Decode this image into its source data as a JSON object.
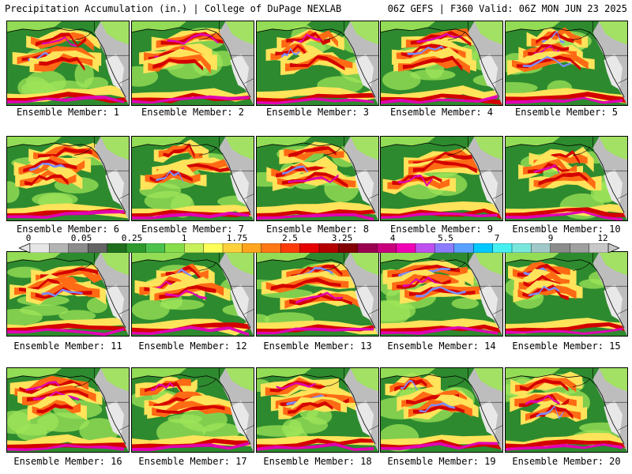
{
  "header": {
    "title": "Precipitation Accumulation (in.) | College of DuPage NEXLAB",
    "run_info": "06Z GEFS | F360 Valid: 06Z MON JUN 23 2025"
  },
  "members": [
    "Ensemble Member: 1",
    "Ensemble Member: 2",
    "Ensemble Member: 3",
    "Ensemble Member: 4",
    "Ensemble Member: 5",
    "Ensemble Member: 6",
    "Ensemble Member: 7",
    "Ensemble Member: 8",
    "Ensemble Member: 9",
    "Ensemble Member: 10",
    "Ensemble Member: 11",
    "Ensemble Member: 12",
    "Ensemble Member: 13",
    "Ensemble Member: 14",
    "Ensemble Member: 15",
    "Ensemble Member: 16",
    "Ensemble Member: 17",
    "Ensemble Member: 18",
    "Ensemble Member: 19",
    "Ensemble Member: 20"
  ],
  "colorbar": {
    "labels": [
      "0",
      "0.05",
      "0.25",
      "1",
      "1.75",
      "2.5",
      "3.25",
      "4",
      "5.5",
      "7",
      "9",
      "12"
    ],
    "colors": [
      "#e6e6e6",
      "#b4b4b4",
      "#8c8c8c",
      "#646464",
      "#1e6e1e",
      "#2e9a2e",
      "#4cc24c",
      "#86de4a",
      "#c8f05a",
      "#ffff5a",
      "#ffd23c",
      "#ffa51e",
      "#ff7814",
      "#ff3c0a",
      "#e60000",
      "#b40000",
      "#820000",
      "#9b0050",
      "#c8007d",
      "#f000b4",
      "#be50f0",
      "#8c7dff",
      "#5aa0ff",
      "#00c8ff",
      "#46f0f0",
      "#78e6dc",
      "#a0c8c8",
      "#8c8c8c",
      "#a0a0a0",
      "#c8c8c8"
    ]
  },
  "map_colors": {
    "ocean_base": "#2e8a2e",
    "land": "#bdbdbd",
    "dry": "#e8e8e8",
    "light": "#9ee45a",
    "moderate": "#ffe35a",
    "heavy": "#ff6a14",
    "very_heavy": "#d40000",
    "extreme": "#e000b4",
    "peak": "#7a8cff",
    "border": "#000000"
  }
}
